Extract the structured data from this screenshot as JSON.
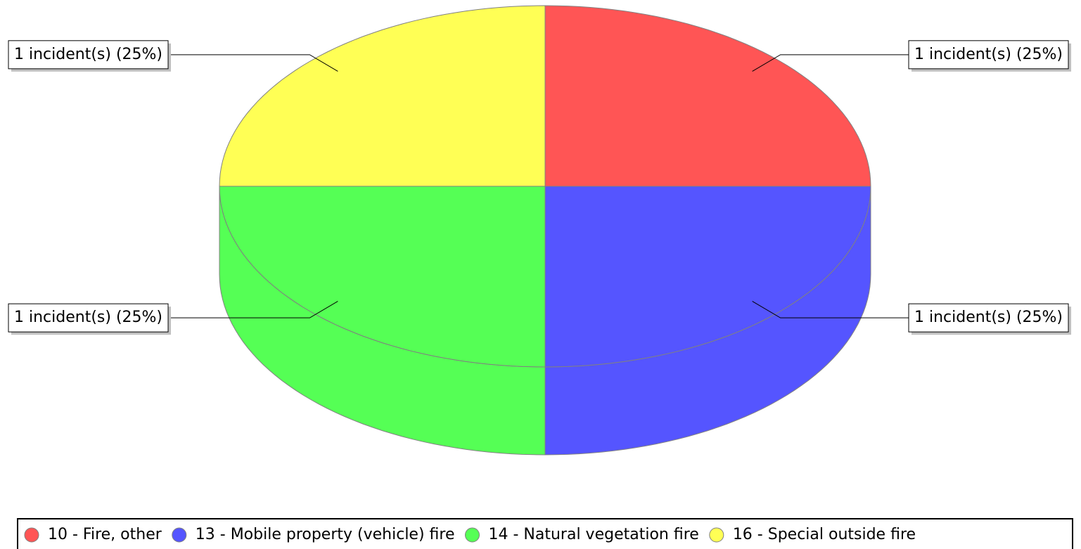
{
  "chart_data": {
    "type": "pie3d",
    "categories": [
      "10 - Fire, other",
      "13 - Mobile property (vehicle) fire",
      "14 - Natural vegetation fire",
      "16 - Special outside fire"
    ],
    "values": [
      1,
      1,
      1,
      1
    ],
    "value_labels": [
      "1 incident(s) (25%)",
      "1 incident(s) (25%)",
      "1 incident(s) (25%)",
      "1 incident(s) (25%)"
    ],
    "colors": [
      "#ff5555",
      "#5555ff",
      "#55ff55",
      "#ffff55"
    ],
    "legend": "bottom"
  }
}
